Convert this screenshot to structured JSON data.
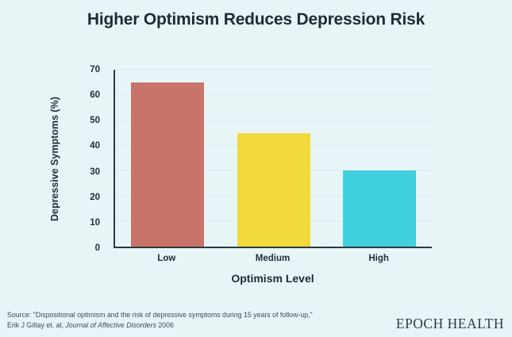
{
  "title": "Higher Optimism Reduces Depression Risk",
  "chart_data": {
    "type": "bar",
    "categories": [
      "Low",
      "Medium",
      "High"
    ],
    "values": [
      65,
      45,
      30
    ],
    "title": "Higher Optimism Reduces Depression Risk",
    "xlabel": "Optimism Level",
    "ylabel": "Depressive Symptoms (%)",
    "ylim": [
      0,
      70
    ],
    "ytick_step": 10,
    "grid": true,
    "legend": false,
    "bar_colors": [
      "#c9746a",
      "#f2d93b",
      "#41d0de"
    ],
    "colors": {
      "background": "#e8f5f7",
      "axis": "#2b3a40",
      "gridline": "#d9e9ec",
      "text": "#1f2b33"
    }
  },
  "footer": {
    "source_line1": "Source: \"Dispositional optimism and the risk of depressive symptoms during 15 years of follow-up,\"",
    "source_line2_prefix": "Erik J Giltay et. al, ",
    "source_line2_journal": "Journal of Affective Disorders",
    "source_line2_suffix": " 2006",
    "brand": "EPOCH HEALTH"
  }
}
